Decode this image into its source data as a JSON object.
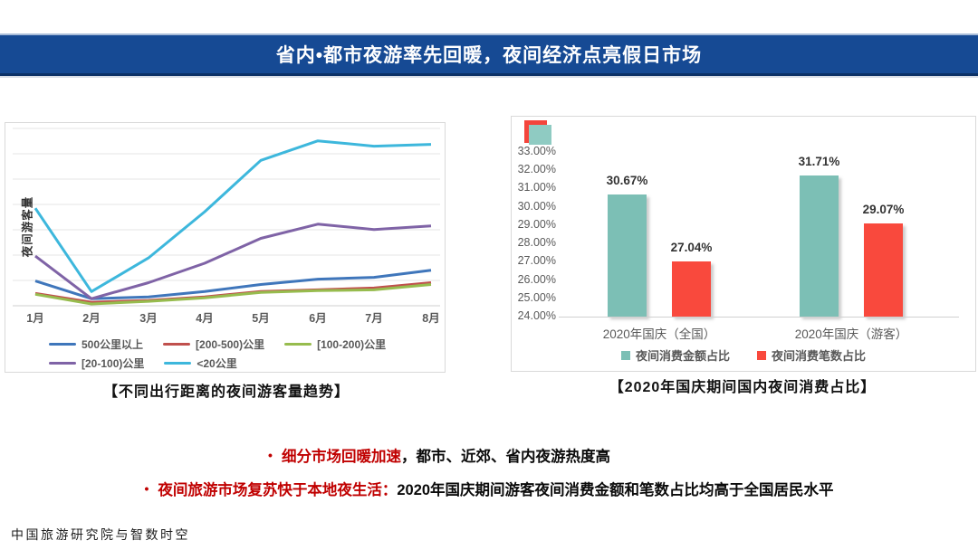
{
  "banner": {
    "title": "省内•都市夜游率先回暖，夜间经济点亮假日市场",
    "bg_color": "#164A94"
  },
  "chart_data": [
    {
      "type": "line",
      "title": "【不同出行距离的夜间游客量趋势】",
      "xlabel": "",
      "ylabel": "夜间游客量",
      "categories": [
        "1月",
        "2月",
        "3月",
        "4月",
        "5月",
        "6月",
        "7月",
        "8月"
      ],
      "series": [
        {
          "name": "500公里以上",
          "color": "#3F76BB",
          "values": [
            14,
            4,
            5,
            8,
            12,
            15,
            16,
            20
          ]
        },
        {
          "name": "[200-500)公里",
          "color": "#C0504D",
          "values": [
            7,
            2,
            3,
            5,
            8,
            9,
            10,
            13
          ]
        },
        {
          "name": "[100-200)公里",
          "color": "#97BC4E",
          "values": [
            6.5,
            1,
            2.5,
            4.5,
            7.5,
            8.5,
            9,
            12
          ]
        },
        {
          "name": "[20-100)公里",
          "color": "#7F63A6",
          "values": [
            28,
            4,
            13,
            24,
            38,
            46,
            43,
            45
          ]
        },
        {
          "name": "<20公里",
          "color": "#3DB7DC",
          "values": [
            55,
            8,
            27,
            53,
            82,
            93,
            90,
            91
          ]
        }
      ],
      "ylim": [
        0,
        100
      ],
      "grid": true,
      "legend_position": "bottom"
    },
    {
      "type": "bar",
      "title": "【2020年国庆期间国内夜间消费占比】",
      "categories": [
        "2020年国庆（全国）",
        "2020年国庆（游客）"
      ],
      "series": [
        {
          "name": "夜间消费金额占比",
          "color": "#7CBFB5",
          "values": [
            30.67,
            31.71
          ],
          "labels": [
            "30.67%",
            "31.71%"
          ]
        },
        {
          "name": "夜间消费笔数占比",
          "color": "#F9493D",
          "values": [
            27.04,
            29.07
          ],
          "labels": [
            "27.04%",
            "29.07%"
          ]
        }
      ],
      "y_ticks": [
        "33.00%",
        "32.00%",
        "31.00%",
        "30.00%",
        "29.00%",
        "28.00%",
        "27.00%",
        "26.00%",
        "25.00%",
        "24.00%"
      ],
      "ylim": [
        24,
        33
      ],
      "grid": false,
      "legend_position": "bottom",
      "corner_marker_colors": {
        "red": "#F4453C",
        "teal": "#8FCBC2"
      }
    }
  ],
  "bullets": [
    {
      "dot": "•",
      "red": "细分市场回暖加速",
      "black": "，都市、近郊、省内夜游热度高"
    },
    {
      "dot": "•",
      "red": "夜间旅游市场复苏快于本地夜生活：",
      "black": "2020年国庆期间游客夜间消费金额和笔数占比均高于全国居民水平"
    }
  ],
  "footer": {
    "credit": "中国旅游研究院与智数时空"
  }
}
